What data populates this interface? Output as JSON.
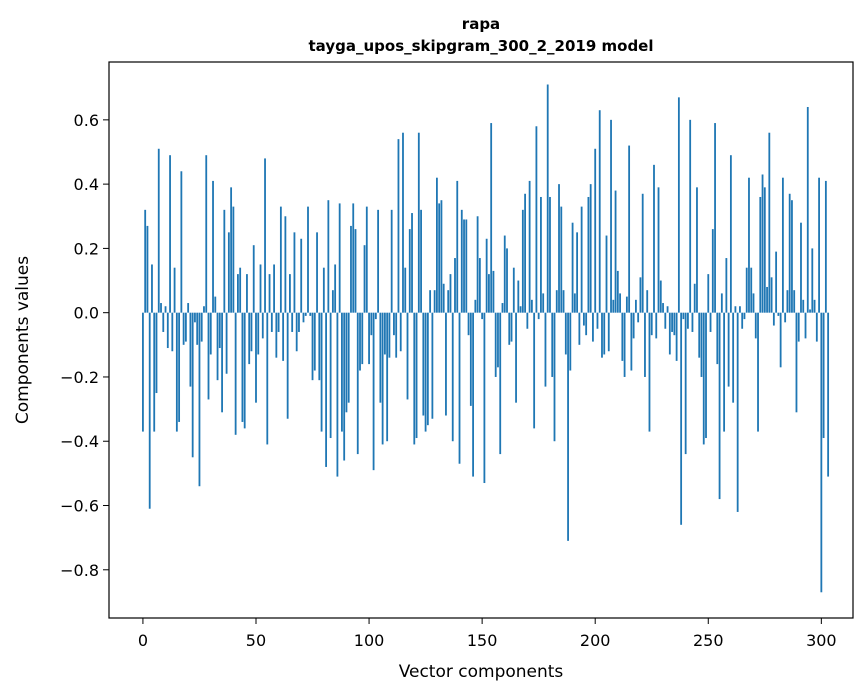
{
  "chart_data": {
    "type": "bar",
    "title": "rapa",
    "subtitle": "tayga_upos_skipgram_300_2_2019 model",
    "xlabel": "Vector components",
    "ylabel": "Components values",
    "xlim": [
      -15,
      314
    ],
    "ylim": [
      -0.95,
      0.78
    ],
    "xticks": [
      0,
      50,
      100,
      150,
      200,
      250,
      300
    ],
    "xtick_labels": [
      "0",
      "50",
      "100",
      "150",
      "200",
      "250",
      "300"
    ],
    "yticks": [
      -0.8,
      -0.6,
      -0.4,
      -0.2,
      0.0,
      0.2,
      0.4,
      0.6
    ],
    "ytick_labels": [
      "−0.8",
      "−0.6",
      "−0.4",
      "−0.2",
      "0.0",
      "0.2",
      "0.4",
      "0.6"
    ],
    "bar_color": "#1f77b4",
    "values": [
      -0.37,
      0.32,
      0.27,
      -0.61,
      0.15,
      -0.37,
      -0.25,
      0.51,
      0.03,
      -0.06,
      0.02,
      -0.11,
      0.49,
      -0.12,
      0.14,
      -0.37,
      -0.34,
      0.44,
      -0.1,
      -0.09,
      0.03,
      -0.23,
      -0.45,
      -0.03,
      -0.1,
      -0.54,
      -0.09,
      0.02,
      0.49,
      -0.27,
      -0.13,
      0.41,
      0.05,
      -0.21,
      -0.11,
      -0.31,
      0.32,
      -0.19,
      0.25,
      0.39,
      0.33,
      -0.38,
      0.12,
      0.14,
      -0.34,
      -0.36,
      0.12,
      -0.16,
      -0.12,
      0.21,
      -0.28,
      -0.13,
      0.15,
      -0.08,
      0.48,
      -0.41,
      0.12,
      -0.06,
      0.15,
      -0.14,
      -0.06,
      0.33,
      -0.15,
      0.3,
      -0.33,
      0.12,
      -0.06,
      0.25,
      -0.12,
      -0.06,
      0.23,
      -0.03,
      -0.01,
      0.33,
      -0.01,
      -0.21,
      -0.18,
      0.25,
      -0.21,
      -0.37,
      0.14,
      -0.48,
      0.35,
      -0.39,
      0.07,
      0.15,
      -0.51,
      0.34,
      -0.37,
      -0.46,
      -0.31,
      -0.28,
      0.27,
      0.34,
      0.26,
      -0.44,
      -0.18,
      -0.16,
      0.21,
      0.33,
      -0.16,
      -0.07,
      -0.49,
      -0.02,
      0.32,
      -0.28,
      -0.41,
      -0.13,
      -0.4,
      -0.14,
      0.32,
      -0.07,
      -0.14,
      0.54,
      -0.12,
      0.56,
      0.14,
      -0.27,
      0.26,
      0.31,
      -0.41,
      -0.39,
      0.56,
      0.32,
      -0.32,
      -0.37,
      -0.35,
      0.07,
      -0.33,
      0.07,
      0.42,
      0.34,
      0.35,
      0.09,
      -0.32,
      0.07,
      0.12,
      -0.4,
      0.17,
      0.41,
      -0.47,
      0.32,
      0.29,
      0.29,
      -0.07,
      -0.29,
      -0.51,
      0.04,
      0.3,
      0.17,
      -0.02,
      -0.53,
      0.23,
      0.12,
      0.59,
      0.13,
      -0.2,
      -0.17,
      -0.44,
      0.03,
      0.24,
      0.2,
      -0.1,
      -0.09,
      0.14,
      -0.28,
      0.1,
      0.02,
      0.32,
      0.37,
      -0.05,
      0.41,
      0.04,
      -0.36,
      0.58,
      -0.02,
      0.36,
      0.06,
      -0.23,
      0.71,
      0.36,
      -0.2,
      -0.4,
      0.07,
      0.4,
      0.33,
      0.07,
      -0.13,
      -0.71,
      -0.18,
      0.28,
      0.06,
      0.25,
      -0.1,
      0.33,
      -0.04,
      -0.07,
      0.36,
      0.4,
      -0.09,
      0.51,
      -0.05,
      0.63,
      -0.14,
      -0.13,
      0.24,
      -0.12,
      0.6,
      0.04,
      0.38,
      0.13,
      0.06,
      -0.15,
      -0.2,
      0.05,
      0.52,
      -0.18,
      -0.08,
      0.04,
      -0.03,
      0.11,
      0.37,
      -0.2,
      0.07,
      -0.37,
      -0.07,
      0.46,
      -0.08,
      0.39,
      0.1,
      0.03,
      -0.05,
      0.02,
      -0.13,
      -0.06,
      -0.07,
      -0.15,
      0.67,
      -0.66,
      -0.02,
      -0.44,
      -0.05,
      0.6,
      -0.06,
      0.09,
      0.39,
      -0.14,
      -0.2,
      -0.41,
      -0.39,
      0.12,
      -0.06,
      0.26,
      0.59,
      -0.16,
      -0.58,
      0.06,
      -0.37,
      0.17,
      -0.23,
      0.49,
      -0.28,
      0.02,
      -0.62,
      0.02,
      -0.05,
      -0.02,
      0.14,
      0.42,
      0.14,
      0.06,
      -0.08,
      -0.37,
      0.36,
      0.43,
      0.39,
      0.08,
      0.56,
      0.11,
      -0.04,
      0.19,
      -0.01,
      -0.17,
      0.42,
      -0.03,
      0.07,
      0.37,
      0.35,
      0.07,
      -0.31,
      -0.09,
      0.28,
      0.04,
      -0.08,
      0.64,
      0.01,
      0.2,
      0.04,
      -0.09,
      0.42,
      -0.87,
      -0.39,
      0.41,
      -0.51
    ]
  }
}
